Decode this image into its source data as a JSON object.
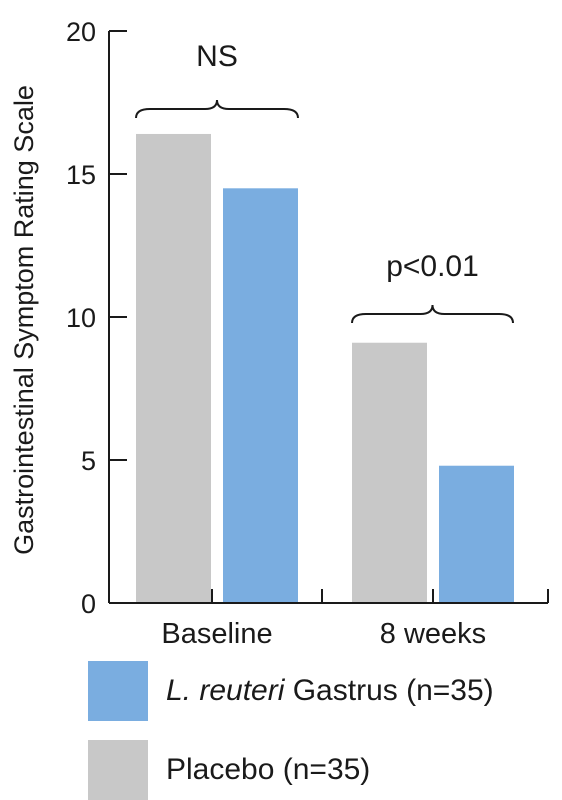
{
  "colors": {
    "placebo": "#c8c8c8",
    "l_reuteri": "#7aade0",
    "axis": "#1a1a1a"
  },
  "chart_data": {
    "type": "bar",
    "ylabel": "Gastrointestinal Symptom Rating Scale",
    "xlabel": "",
    "ylim": [
      0,
      20
    ],
    "yticks": [
      0,
      5,
      10,
      15,
      20
    ],
    "categories": [
      "Baseline",
      "8 weeks"
    ],
    "series": [
      {
        "name": "Placebo (n=35)",
        "values": [
          16.4,
          9.1
        ]
      },
      {
        "name": "L. reuteri Gastrus (n=35)",
        "values": [
          14.5,
          4.8
        ]
      }
    ],
    "annotations": [
      {
        "group": "Baseline",
        "text": "NS"
      },
      {
        "group": "8 weeks",
        "text": "p<0.01"
      }
    ],
    "legend": {
      "placement": "bottom",
      "items": [
        {
          "series": 1,
          "italic": "L. reuteri",
          "rest": " Gastrus (n=35)"
        },
        {
          "series": 0,
          "italic": "",
          "rest": "Placebo (n=35)"
        }
      ]
    }
  }
}
